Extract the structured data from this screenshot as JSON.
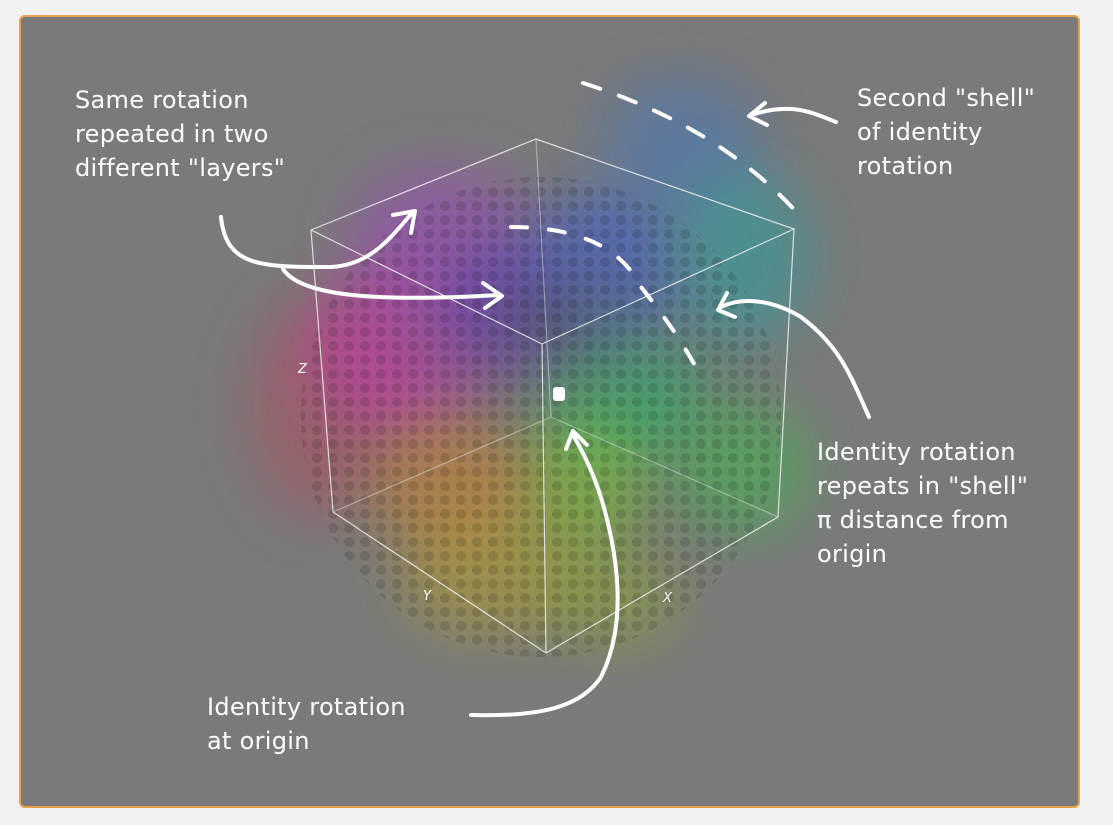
{
  "axes": {
    "x_label": "X",
    "y_label": "Y",
    "z_label": "Z"
  },
  "annotations": {
    "layers": "Same rotation\nrepeated in two\ndifferent \"layers\"",
    "second_shell": "Second \"shell\"\nof identity\nrotation",
    "shell_pi": "Identity rotation\nrepeats in \"shell\"\nπ distance from\norigin",
    "origin": "Identity rotation\nat origin"
  },
  "colors": {
    "frame_border": "#e8a24a",
    "frame_background": "#7a7a7a",
    "page_background": "#f2f2f2",
    "annotation": "#ffffff"
  }
}
